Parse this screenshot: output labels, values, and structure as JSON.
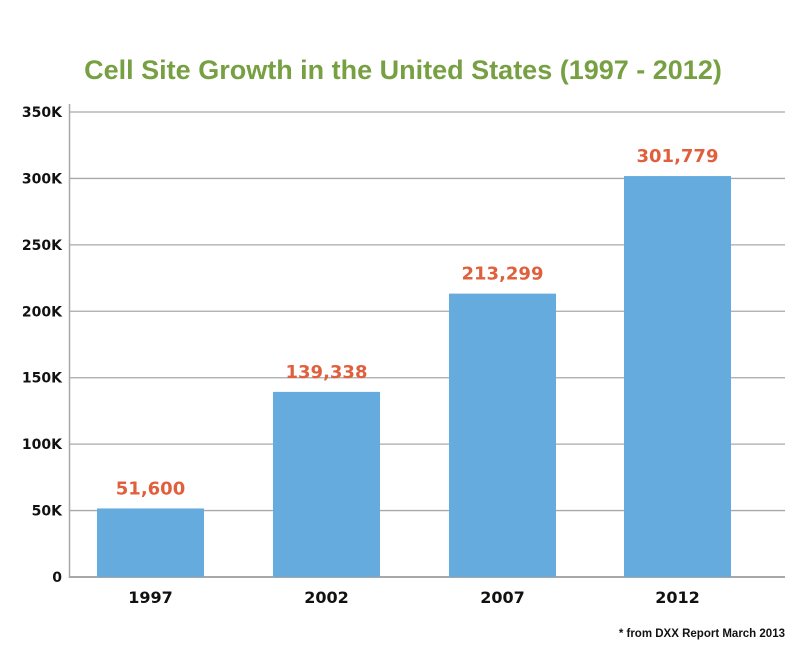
{
  "chart_data": {
    "type": "bar",
    "title": "Cell Site Growth in the United States (1997 - 2012)",
    "xlabel": "",
    "ylabel": "",
    "categories": [
      "1997",
      "2002",
      "2007",
      "2012"
    ],
    "values": [
      51600,
      139338,
      213299,
      301779
    ],
    "data_labels": [
      "51,600",
      "139,338",
      "213,299",
      "301,779"
    ],
    "ylim": [
      0,
      350000
    ],
    "yticks": [
      0,
      50000,
      100000,
      150000,
      200000,
      250000,
      300000,
      350000
    ],
    "ytick_labels": [
      "0",
      "50K",
      "100K",
      "150K",
      "200K",
      "250K",
      "300K",
      "350K"
    ],
    "grid": true,
    "legend": "none",
    "footnote": "* from DXX Report March 2013",
    "colors": {
      "title": "#77a043",
      "bar": "#66abdd",
      "data_label": "#e0603e",
      "grid": "#a8a8a8"
    }
  }
}
